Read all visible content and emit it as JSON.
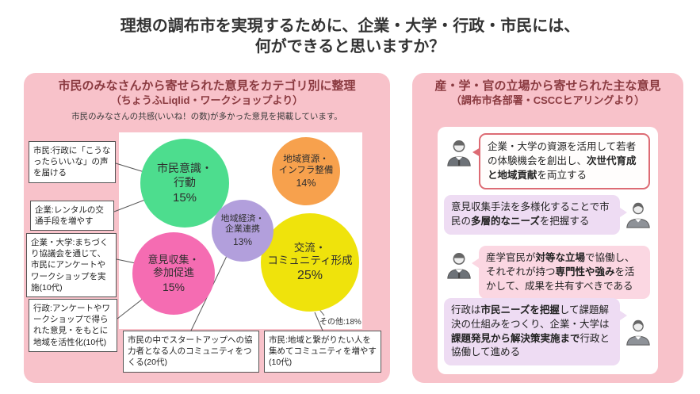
{
  "title": {
    "line1": "理想の調布市を実現するために、企業・大学・行政・市民には、",
    "line2": "何ができると思いますか？"
  },
  "left_panel": {
    "heading": "市民のみなさんから寄せられた意見をカテゴリ別に整理",
    "subheading": "（ちょうふLiqlid・ワークショップより）",
    "note": "市民のみなさんの共感(いいね！の数)が多かった意見を掲載しています。",
    "bubbles": [
      {
        "label": "市民意識・\n行動",
        "value": "15%",
        "color": "#4ddd8e"
      },
      {
        "label": "地域資源・\nインフラ整備",
        "value": "14%",
        "color": "#f7a14d"
      },
      {
        "label": "地域経済・\n企業連携",
        "value": "13%",
        "color": "#b29fdc"
      },
      {
        "label": "意見収集・\n参加促進",
        "value": "15%",
        "color": "#f56cb2"
      },
      {
        "label": "交流・\nコミュニティ形成",
        "value": "25%",
        "color": "#efe30c"
      }
    ],
    "other_label": "その他:18%",
    "callouts": [
      {
        "text": "市民:行政に「こうなったらいいな」の声を届ける"
      },
      {
        "text": "企業:レンタルの交通手段を増やす"
      },
      {
        "text": "企業・大学:まちづくり協議会を通じて、市民にアンケートやワークショップを実施(10代)"
      },
      {
        "text": "行政:アンケートやワークショップで得られた意見・をもとに地域を活性化(10代)"
      },
      {
        "text": "市民の中でスタートアップへの協力者となる人のコミュニティをつくる(20代)"
      },
      {
        "text": "市民:地域と繋がりたい人を集めてコミュニティを増やす(10代)"
      }
    ]
  },
  "right_panel": {
    "heading": "産・学・官の立場から寄せられた主な意見",
    "subheading": "（調布市各部署・CSCCヒアリングより）",
    "opinions": [
      {
        "icon": "businessman-icon",
        "segments": [
          {
            "t": "企業・大学の資源を活用して若者の体験機会を創出し、",
            "b": false
          },
          {
            "t": "次世代育成と地域貢献",
            "b": true
          },
          {
            "t": "を両立する",
            "b": false
          }
        ]
      },
      {
        "icon": "businesswoman-icon",
        "segments": [
          {
            "t": "意見収集手法を多様化することで市民の",
            "b": false
          },
          {
            "t": "多層的なニーズ",
            "b": true
          },
          {
            "t": "を把握する",
            "b": false
          }
        ]
      },
      {
        "icon": "businessman-icon",
        "segments": [
          {
            "t": "産学官民が",
            "b": false
          },
          {
            "t": "対等な立場",
            "b": true
          },
          {
            "t": "で協働し、それぞれが持つ",
            "b": false
          },
          {
            "t": "専門性や強み",
            "b": true
          },
          {
            "t": "を活かして、成果を共有すべきである",
            "b": false
          }
        ]
      },
      {
        "icon": "businesswoman-icon",
        "segments": [
          {
            "t": "行政は",
            "b": false
          },
          {
            "t": "市民ニーズを把握",
            "b": true
          },
          {
            "t": "して課題解決の仕組みをつくり、企業・大学は",
            "b": false
          },
          {
            "t": "課題発見から解決策実施まで",
            "b": true
          },
          {
            "t": "行政と協働して進める",
            "b": false
          }
        ]
      }
    ]
  },
  "chart_data": {
    "type": "bubble",
    "title": "市民のみなさんから寄せられた意見をカテゴリ別に整理",
    "categories": [
      "市民意識・行動",
      "地域資源・インフラ整備",
      "地域経済・企業連携",
      "意見収集・参加促進",
      "交流・コミュニティ形成",
      "その他"
    ],
    "values": [
      15,
      14,
      13,
      15,
      25,
      18
    ],
    "unit": "%",
    "legend": false
  },
  "colors": {
    "panel_bg": "#f8c2ca",
    "heading_text": "#8a3a40",
    "opinion1_border": "#dd6b74",
    "speech_purple": "#eedcf3",
    "speech_pink": "#fbd7e2"
  }
}
